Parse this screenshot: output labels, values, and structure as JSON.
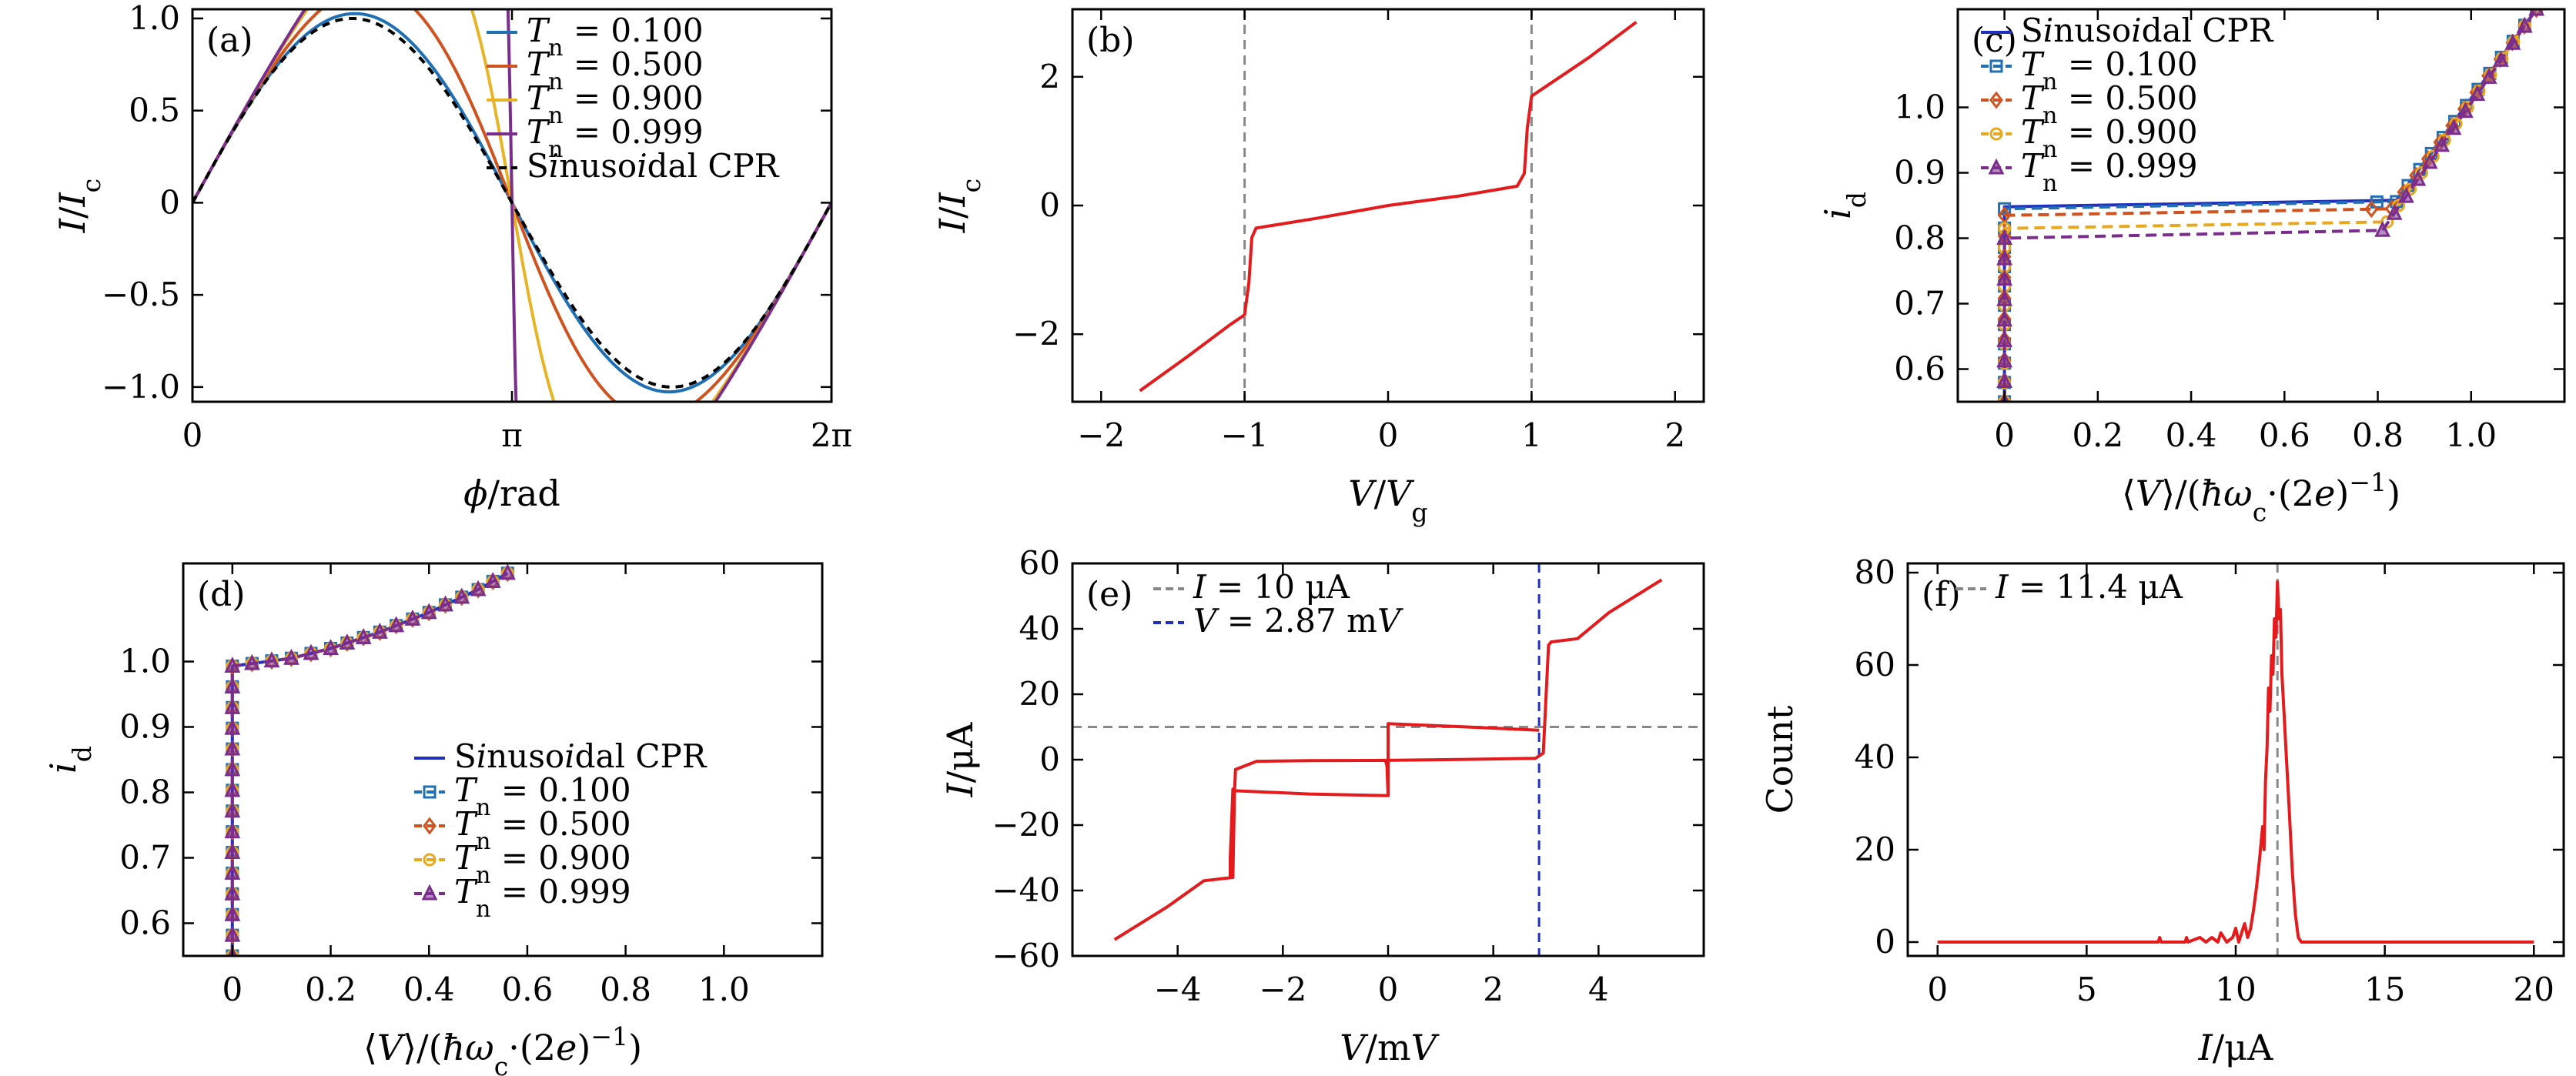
{
  "chart_data": [
    {
      "panel": "(a)",
      "type": "line",
      "xlabel": "ϕ/rad",
      "ylabel": "I/I_c",
      "xlim": [
        0,
        6.2832
      ],
      "ylim": [
        -1.08,
        1.05
      ],
      "xticks": [
        {
          "v": 0,
          "t": "0"
        },
        {
          "v": 3.1416,
          "t": "π"
        },
        {
          "v": 6.2832,
          "t": "2π"
        }
      ],
      "yticks": [
        {
          "v": -1,
          "t": "−1.0"
        },
        {
          "v": -0.5,
          "t": "−0.5"
        },
        {
          "v": 0,
          "t": "0"
        },
        {
          "v": 0.5,
          "t": "0.5"
        },
        {
          "v": 1,
          "t": "1.0"
        }
      ],
      "legend_position": "top-right",
      "series": [
        {
          "name": "T_n = 0.100",
          "color": "#1f6fb4",
          "style": "solid",
          "Tn": 0.1
        },
        {
          "name": "T_n = 0.500",
          "color": "#d0521f",
          "style": "solid",
          "Tn": 0.5
        },
        {
          "name": "T_n = 0.900",
          "color": "#e8b325",
          "style": "solid",
          "Tn": 0.9
        },
        {
          "name": "T_n = 0.999",
          "color": "#7b2d8e",
          "style": "solid",
          "Tn": 0.999
        },
        {
          "name": "Sinusoidal CPR",
          "color": "#000000",
          "style": "dashed",
          "Tn": 0
        }
      ]
    },
    {
      "panel": "(b)",
      "type": "line",
      "xlabel": "V/V_g",
      "ylabel": "I/I_c",
      "xlim": [
        -2.2,
        2.2
      ],
      "ylim": [
        -3.05,
        3.05
      ],
      "xticks": [
        {
          "v": -2,
          "t": "−2"
        },
        {
          "v": -1,
          "t": "−1"
        },
        {
          "v": 0,
          "t": "0"
        },
        {
          "v": 1,
          "t": "1"
        },
        {
          "v": 2,
          "t": "2"
        }
      ],
      "yticks": [
        {
          "v": -2,
          "t": "−2"
        },
        {
          "v": 0,
          "t": "0"
        },
        {
          "v": 2,
          "t": "2"
        }
      ],
      "vlines": [
        {
          "x": -1,
          "color": "#888888"
        },
        {
          "x": 1,
          "color": "#888888"
        }
      ],
      "series": [
        {
          "name": "",
          "color": "#e41a1c",
          "points": [
            [
              -1.73,
              -2.88
            ],
            [
              -1.4,
              -2.35
            ],
            [
              -1.1,
              -1.85
            ],
            [
              -1.0,
              -1.7
            ],
            [
              -0.97,
              -1.2
            ],
            [
              -0.95,
              -0.5
            ],
            [
              -0.92,
              -0.35
            ],
            [
              -0.5,
              -0.2
            ],
            [
              0,
              0
            ],
            [
              0.5,
              0.15
            ],
            [
              0.9,
              0.3
            ],
            [
              0.95,
              0.5
            ],
            [
              0.97,
              1.2
            ],
            [
              1.0,
              1.7
            ],
            [
              1.1,
              1.85
            ],
            [
              1.4,
              2.3
            ],
            [
              1.73,
              2.85
            ]
          ]
        }
      ]
    },
    {
      "panel": "(c)",
      "type": "line",
      "xlabel": "⟨V⟩/(ħω_c·(2e)^−1)",
      "ylabel": "i_d",
      "xlim": [
        -0.1,
        1.2
      ],
      "ylim": [
        0.55,
        1.15
      ],
      "xticks": [
        {
          "v": 0,
          "t": "0"
        },
        {
          "v": 0.2,
          "t": "0.2"
        },
        {
          "v": 0.4,
          "t": "0.4"
        },
        {
          "v": 0.6,
          "t": "0.6"
        },
        {
          "v": 0.8,
          "t": "0.8"
        },
        {
          "v": 1.0,
          "t": "1.0"
        }
      ],
      "yticks": [
        {
          "v": 0.6,
          "t": "0.6"
        },
        {
          "v": 0.7,
          "t": "0.7"
        },
        {
          "v": 0.8,
          "t": "0.8"
        },
        {
          "v": 0.9,
          "t": "0.9"
        },
        {
          "v": 1.0,
          "t": "1.0"
        }
      ],
      "legend_position": "top-left",
      "series": [
        {
          "name": "Sinusoidal CPR",
          "color": "#1f2fc0",
          "style": "solid",
          "marker": "none",
          "points": [
            [
              0,
              0.55
            ],
            [
              0,
              0.848
            ],
            [
              0.84,
              0.858
            ],
            [
              1.14,
              1.15
            ]
          ]
        },
        {
          "name": "T_n = 0.100",
          "color": "#1f6fb4",
          "style": "dashed",
          "marker": "square",
          "points": [
            [
              0,
              0.55
            ],
            [
              0,
              0.845
            ],
            [
              0.84,
              0.856
            ],
            [
              1.14,
              1.15
            ]
          ]
        },
        {
          "name": "T_n = 0.500",
          "color": "#d0521f",
          "style": "dashed",
          "marker": "diamond",
          "points": [
            [
              0,
              0.55
            ],
            [
              0,
              0.835
            ],
            [
              0.83,
              0.845
            ],
            [
              1.14,
              1.15
            ]
          ]
        },
        {
          "name": "T_n = 0.900",
          "color": "#e8a81e",
          "style": "dashed",
          "marker": "circle",
          "points": [
            [
              0,
              0.55
            ],
            [
              0,
              0.815
            ],
            [
              0.82,
              0.825
            ],
            [
              1.14,
              1.15
            ]
          ]
        },
        {
          "name": "T_n = 0.999",
          "color": "#7b2d8e",
          "style": "dashed",
          "marker": "triangle",
          "points": [
            [
              0,
              0.55
            ],
            [
              0,
              0.8
            ],
            [
              0.81,
              0.812
            ],
            [
              1.14,
              1.15
            ]
          ]
        }
      ]
    },
    {
      "panel": "(d)",
      "type": "line",
      "xlabel": "⟨V⟩/(ħω_c·(2e)^−1)",
      "ylabel": "i_d",
      "xlim": [
        -0.1,
        1.2
      ],
      "ylim": [
        0.55,
        1.15
      ],
      "xticks": [
        {
          "v": 0,
          "t": "0"
        },
        {
          "v": 0.2,
          "t": "0.2"
        },
        {
          "v": 0.4,
          "t": "0.4"
        },
        {
          "v": 0.6,
          "t": "0.6"
        },
        {
          "v": 0.8,
          "t": "0.8"
        },
        {
          "v": 1.0,
          "t": "1.0"
        }
      ],
      "yticks": [
        {
          "v": 0.6,
          "t": "0.6"
        },
        {
          "v": 0.7,
          "t": "0.7"
        },
        {
          "v": 0.8,
          "t": "0.8"
        },
        {
          "v": 0.9,
          "t": "0.9"
        },
        {
          "v": 1.0,
          "t": "1.0"
        }
      ],
      "legend_position": "bottom-right",
      "series": [
        {
          "name": "Sinusoidal CPR",
          "color": "#1f2fc0",
          "style": "solid",
          "marker": "none",
          "points": [
            [
              0,
              0.55
            ],
            [
              0,
              0.993
            ],
            [
              0.12,
              1.005
            ],
            [
              0.2,
              1.02
            ],
            [
              0.3,
              1.045
            ],
            [
              0.4,
              1.075
            ],
            [
              0.5,
              1.11
            ],
            [
              0.56,
              1.135
            ]
          ]
        },
        {
          "name": "T_n = 0.100",
          "color": "#1f6fb4",
          "style": "dashed",
          "marker": "square",
          "points": [
            [
              0,
              0.55
            ],
            [
              0,
              0.993
            ],
            [
              0.12,
              1.005
            ],
            [
              0.2,
              1.02
            ],
            [
              0.3,
              1.045
            ],
            [
              0.4,
              1.075
            ],
            [
              0.5,
              1.11
            ],
            [
              0.56,
              1.135
            ]
          ]
        },
        {
          "name": "T_n = 0.500",
          "color": "#d0521f",
          "style": "dashed",
          "marker": "diamond",
          "points": [
            [
              0,
              0.55
            ],
            [
              0,
              0.993
            ],
            [
              0.12,
              1.005
            ],
            [
              0.2,
              1.02
            ],
            [
              0.3,
              1.045
            ],
            [
              0.4,
              1.075
            ],
            [
              0.5,
              1.11
            ],
            [
              0.56,
              1.135
            ]
          ]
        },
        {
          "name": "T_n = 0.900",
          "color": "#e8a81e",
          "style": "dashed",
          "marker": "circle",
          "points": [
            [
              0,
              0.55
            ],
            [
              0,
              0.993
            ],
            [
              0.12,
              1.005
            ],
            [
              0.2,
              1.02
            ],
            [
              0.3,
              1.045
            ],
            [
              0.4,
              1.075
            ],
            [
              0.5,
              1.11
            ],
            [
              0.56,
              1.135
            ]
          ]
        },
        {
          "name": "T_n = 0.999",
          "color": "#7b2d8e",
          "style": "dashed",
          "marker": "triangle",
          "points": [
            [
              0,
              0.55
            ],
            [
              0,
              0.993
            ],
            [
              0.12,
              1.005
            ],
            [
              0.2,
              1.02
            ],
            [
              0.3,
              1.045
            ],
            [
              0.4,
              1.075
            ],
            [
              0.5,
              1.11
            ],
            [
              0.56,
              1.135
            ]
          ]
        }
      ]
    },
    {
      "panel": "(e)",
      "type": "line",
      "xlabel": "V/mV",
      "ylabel": "I/μA",
      "xlim": [
        -6,
        6
      ],
      "ylim": [
        -60,
        60
      ],
      "xticks": [
        {
          "v": -4,
          "t": "−4"
        },
        {
          "v": -2,
          "t": "−2"
        },
        {
          "v": 0,
          "t": "0"
        },
        {
          "v": 2,
          "t": "2"
        },
        {
          "v": 4,
          "t": "4"
        }
      ],
      "yticks": [
        {
          "v": -60,
          "t": "−60"
        },
        {
          "v": -40,
          "t": "−40"
        },
        {
          "v": -20,
          "t": "−20"
        },
        {
          "v": 0,
          "t": "0"
        },
        {
          "v": 20,
          "t": "20"
        },
        {
          "v": 40,
          "t": "40"
        },
        {
          "v": 60,
          "t": "60"
        }
      ],
      "legend_position": "top-left",
      "hline": {
        "y": 10,
        "color": "#888888",
        "label": "I = 10 μA"
      },
      "vline": {
        "x": 2.87,
        "color": "#1f2fc0",
        "label": "V = 2.87 mV"
      },
      "series": [
        {
          "name": "",
          "color": "#e41a1c",
          "points": [
            [
              -5.2,
              -55
            ],
            [
              -4.2,
              -45
            ],
            [
              -3.5,
              -37
            ],
            [
              -2.95,
              -36
            ],
            [
              -2.92,
              -10
            ],
            [
              -2.9,
              -3
            ],
            [
              -2.5,
              -0.5
            ],
            [
              -1.5,
              -0.3
            ],
            [
              -0.05,
              -0.2
            ],
            [
              -0.02,
              -2
            ],
            [
              0,
              -11
            ],
            [
              -1.5,
              -10.5
            ],
            [
              -2.9,
              -9.5
            ],
            [
              -2.95,
              -9
            ],
            [
              -3.0,
              -30
            ],
            [
              -3.0,
              -36
            ]
          ]
        },
        {
          "name": "",
          "color": "#e41a1c",
          "points": [
            [
              0,
              -11
            ],
            [
              0,
              -1
            ],
            [
              0,
              11
            ],
            [
              1.5,
              10
            ],
            [
              2.87,
              9
            ]
          ]
        },
        {
          "name": "",
          "color": "#e41a1c",
          "points": [
            [
              0,
              -0.2
            ],
            [
              1.5,
              0.1
            ],
            [
              2.8,
              0.4
            ],
            [
              2.95,
              2
            ],
            [
              3.05,
              35
            ],
            [
              3.1,
              36
            ],
            [
              3.6,
              37
            ],
            [
              4.2,
              45
            ],
            [
              5.2,
              55
            ]
          ]
        }
      ]
    },
    {
      "panel": "(f)",
      "type": "line",
      "xlabel": "I/μA",
      "ylabel": "Count",
      "xlim": [
        -1,
        21
      ],
      "ylim": [
        -3,
        82
      ],
      "xticks": [
        {
          "v": 0,
          "t": "0"
        },
        {
          "v": 5,
          "t": "5"
        },
        {
          "v": 10,
          "t": "10"
        },
        {
          "v": 15,
          "t": "15"
        },
        {
          "v": 20,
          "t": "20"
        }
      ],
      "yticks": [
        {
          "v": 0,
          "t": "0"
        },
        {
          "v": 20,
          "t": "20"
        },
        {
          "v": 40,
          "t": "40"
        },
        {
          "v": 60,
          "t": "60"
        },
        {
          "v": 80,
          "t": "80"
        }
      ],
      "legend_position": "top-left",
      "vline": {
        "x": 11.4,
        "color": "#888888",
        "label": "I = 11.4 μA"
      },
      "series": [
        {
          "name": "",
          "color": "#e41a1c",
          "points": [
            [
              0,
              0
            ],
            [
              7.4,
              0
            ],
            [
              7.45,
              1
            ],
            [
              7.5,
              0
            ],
            [
              8.3,
              0
            ],
            [
              8.35,
              1
            ],
            [
              8.4,
              0
            ],
            [
              8.8,
              1
            ],
            [
              9.0,
              0
            ],
            [
              9.2,
              1
            ],
            [
              9.4,
              0
            ],
            [
              9.5,
              2
            ],
            [
              9.7,
              0
            ],
            [
              9.9,
              1
            ],
            [
              10.0,
              3
            ],
            [
              10.1,
              0
            ],
            [
              10.2,
              2
            ],
            [
              10.3,
              4
            ],
            [
              10.4,
              1
            ],
            [
              10.5,
              3
            ],
            [
              10.6,
              7
            ],
            [
              10.7,
              12
            ],
            [
              10.8,
              18
            ],
            [
              10.9,
              25
            ],
            [
              10.95,
              20
            ],
            [
              11.0,
              35
            ],
            [
              11.05,
              42
            ],
            [
              11.1,
              55
            ],
            [
              11.15,
              50
            ],
            [
              11.2,
              62
            ],
            [
              11.25,
              58
            ],
            [
              11.3,
              70
            ],
            [
              11.35,
              66
            ],
            [
              11.4,
              78
            ],
            [
              11.45,
              70
            ],
            [
              11.5,
              72
            ],
            [
              11.55,
              58
            ],
            [
              11.6,
              52
            ],
            [
              11.7,
              40
            ],
            [
              11.8,
              28
            ],
            [
              11.9,
              15
            ],
            [
              12.0,
              6
            ],
            [
              12.1,
              1
            ],
            [
              12.2,
              0
            ],
            [
              20,
              0
            ]
          ]
        }
      ]
    }
  ],
  "labels": {
    "a": "(a)",
    "b": "(b)",
    "c": "(c)",
    "d": "(d)",
    "e": "(e)",
    "f": "(f)"
  }
}
